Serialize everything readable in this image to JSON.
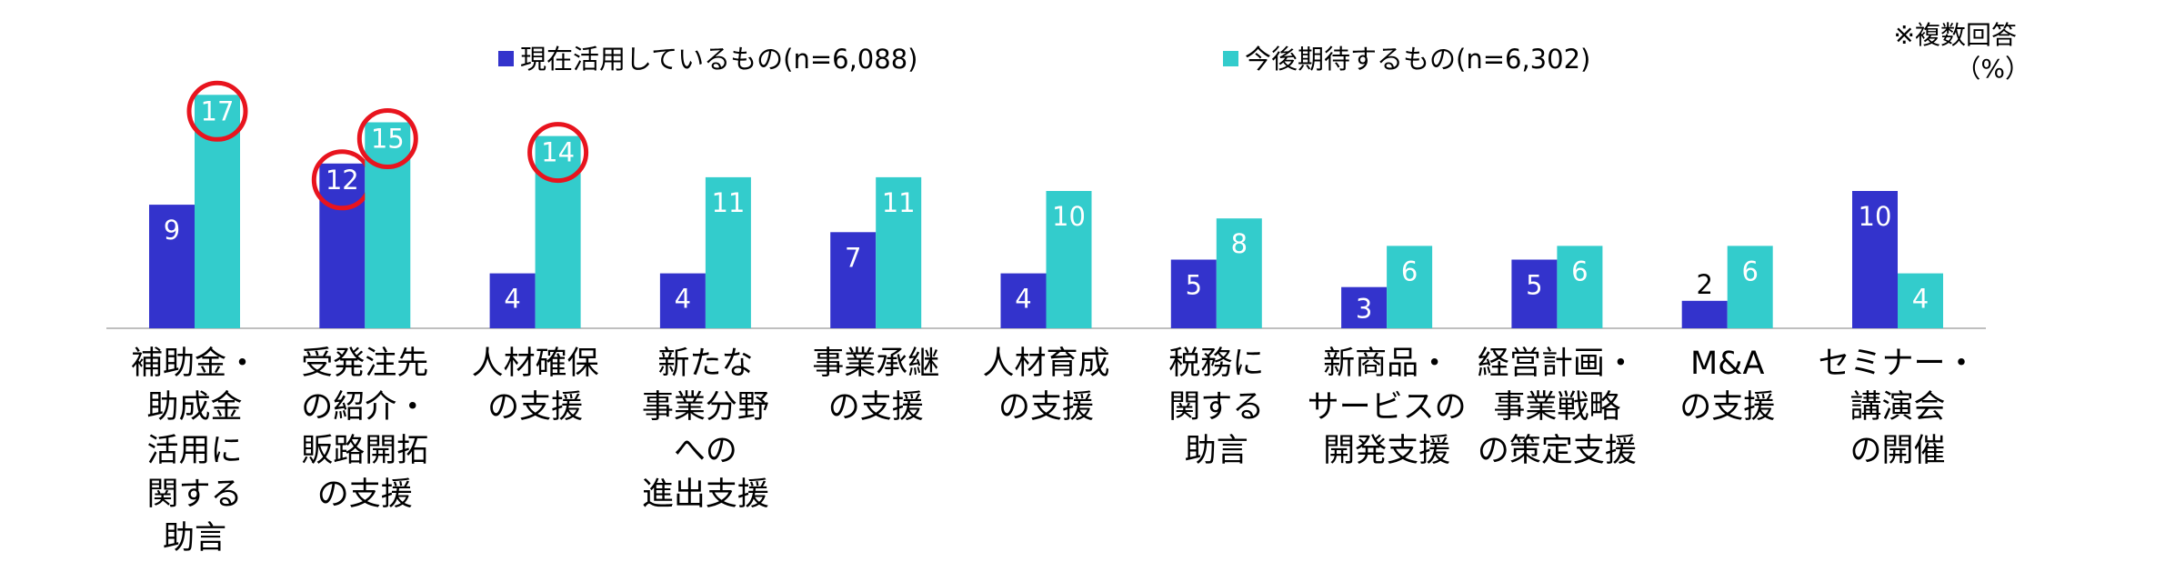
{
  "chart_data": {
    "type": "bar",
    "title": "",
    "note": "※複数回答",
    "unit": "（%）",
    "ylim": [
      0,
      20
    ],
    "grid": false,
    "legend_position": "top-center",
    "colors": {
      "current": "#3333CC",
      "future": "#33CCCC",
      "highlight": "#E8141E"
    },
    "series": [
      {
        "name": "現在活用しているもの(n=6,088)",
        "values": [
          9,
          12,
          4,
          4,
          7,
          4,
          5,
          3,
          5,
          2,
          10
        ]
      },
      {
        "name": "今後期待するもの(n=6,302)",
        "values": [
          17,
          15,
          14,
          11,
          11,
          10,
          8,
          6,
          6,
          6,
          4
        ]
      }
    ],
    "categories": [
      [
        "補助金・",
        "助成金",
        "活用に",
        "関する",
        "助言"
      ],
      [
        "受発注先",
        "の紹介・",
        "販路開拓",
        "の支援"
      ],
      [
        "人材確保",
        "の支援"
      ],
      [
        "新たな",
        "事業分野",
        "への",
        "進出支援"
      ],
      [
        "事業承継",
        "の支援"
      ],
      [
        "人材育成",
        "の支援"
      ],
      [
        "税務に",
        "関する",
        "助言"
      ],
      [
        "新商品・",
        "サービスの",
        "開発支援"
      ],
      [
        "経営計画・",
        "事業戦略",
        "の策定支援"
      ],
      [
        "M&A",
        "の支援"
      ],
      [
        "セミナー・",
        "講演会",
        "の開催"
      ]
    ],
    "highlighted": [
      {
        "series": 1,
        "category": 0
      },
      {
        "series": 0,
        "category": 1
      },
      {
        "series": 1,
        "category": 1
      },
      {
        "series": 1,
        "category": 2
      }
    ]
  }
}
